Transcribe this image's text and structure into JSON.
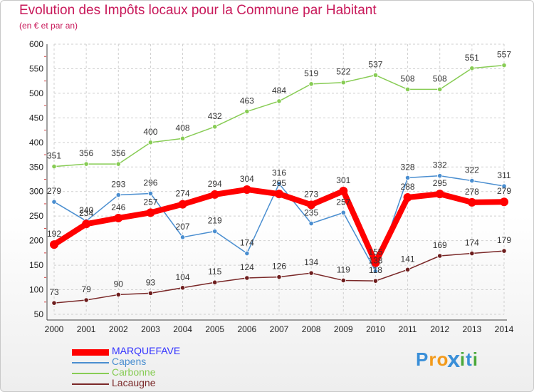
{
  "chart_data": {
    "type": "line",
    "title": "Evolution des Impôts locaux pour la Commune par Habitant",
    "subtitle": "(en € et par an)",
    "xlabel": "",
    "ylabel": "",
    "ylim": [
      50,
      600
    ],
    "yticks": [
      50,
      100,
      150,
      200,
      250,
      300,
      350,
      400,
      450,
      500,
      550,
      600
    ],
    "x": [
      "2000",
      "2001",
      "2002",
      "2003",
      "2004",
      "2005",
      "2006",
      "2007",
      "2008",
      "2009",
      "2010",
      "2011",
      "2012",
      "2013",
      "2014"
    ],
    "grid": true,
    "legend_position": "bottom-left",
    "series": [
      {
        "name": "MARQUEFAVE",
        "color": "#ff0000",
        "label_color": "#3333ff",
        "values": [
          192,
          234,
          246,
          257,
          274,
          294,
          304,
          295,
          273,
          301,
          155,
          288,
          295,
          278,
          279
        ]
      },
      {
        "name": "Capens",
        "color": "#4a8ed0",
        "label_color": "#4a8ed0",
        "values": [
          279,
          240,
          293,
          296,
          207,
          219,
          174,
          316,
          235,
          257,
          138,
          328,
          332,
          322,
          311
        ]
      },
      {
        "name": "Carbonne",
        "color": "#88cc55",
        "label_color": "#88cc55",
        "values": [
          351,
          356,
          356,
          400,
          408,
          432,
          463,
          484,
          519,
          522,
          537,
          508,
          508,
          551,
          557
        ]
      },
      {
        "name": "Lacaugne",
        "color": "#7a2828",
        "label_color": "#7a2828",
        "values": [
          73,
          79,
          90,
          93,
          104,
          115,
          124,
          126,
          134,
          119,
          118,
          141,
          169,
          174,
          179
        ]
      }
    ]
  },
  "logo": {
    "letters": [
      "P",
      "r",
      "o",
      "x",
      "i",
      "t",
      "i"
    ],
    "colors": [
      "#3a8fd8",
      "#f39a1a",
      "#f39a1a",
      "#3a8fd8",
      "#4aa83a",
      "#3a8fd8",
      "#4aa83a"
    ]
  }
}
